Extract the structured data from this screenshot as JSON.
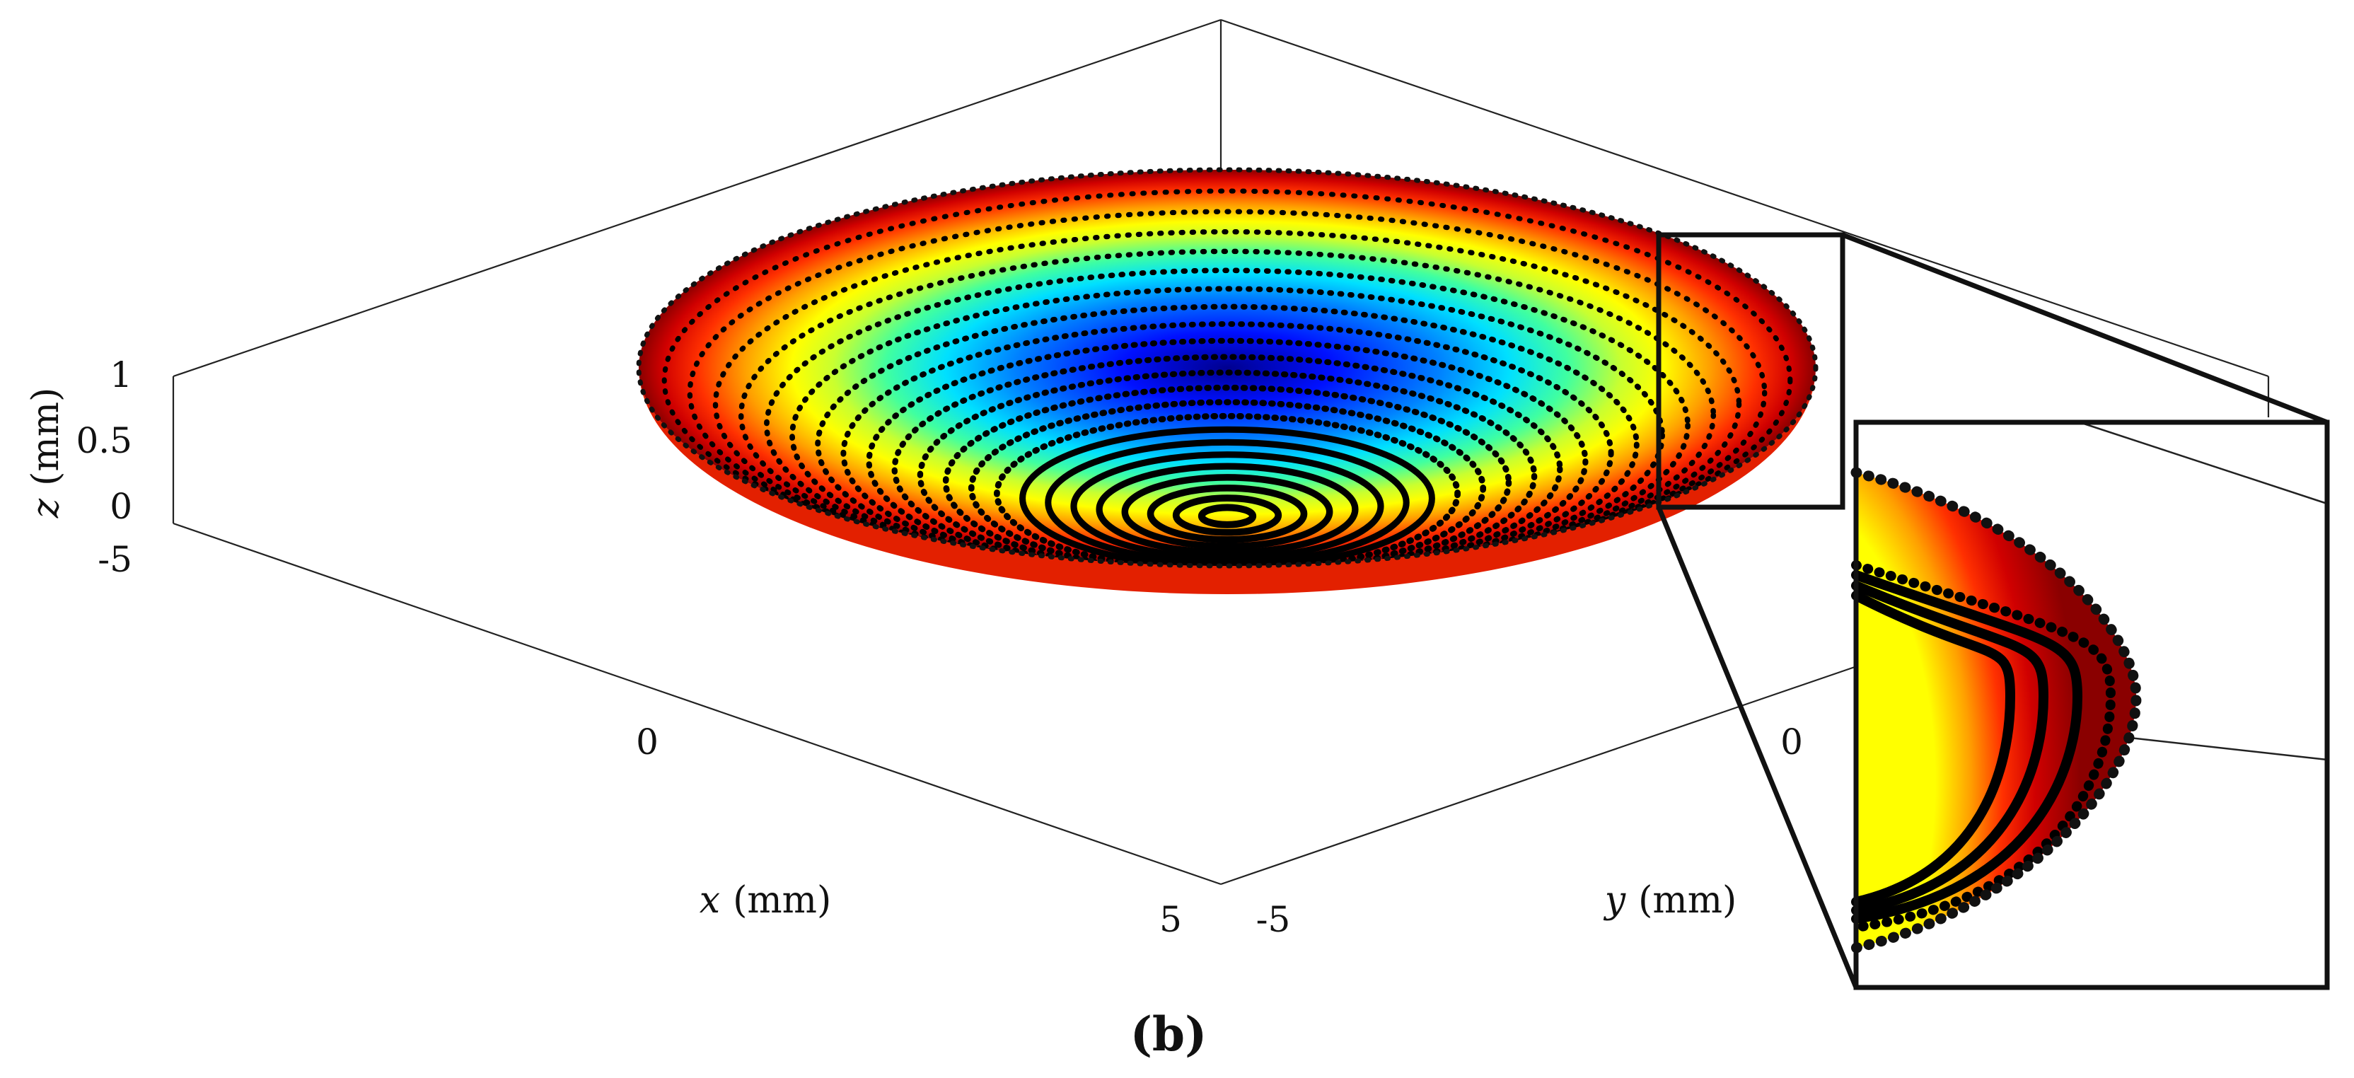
{
  "figure": {
    "panel_label": "(b)"
  },
  "chart_data": {
    "type": "surface-3d",
    "description_fields": {
      "surface": "concave spherical-cap dish, rainbow (jet) colormap by height, dark-red rim to blue centre",
      "overlay": "black scatter points on concentric circles",
      "inset": "zoomed view of the right rim"
    },
    "x_axis": {
      "var": "x",
      "unit": "(mm)",
      "ticks": [
        "0",
        "5"
      ],
      "range": [
        -5,
        5
      ]
    },
    "y_axis": {
      "var": "y",
      "unit": "(mm)",
      "ticks": [
        "-5",
        "0"
      ],
      "range": [
        -5,
        5
      ]
    },
    "z_axis": {
      "var": "z",
      "unit": "(mm)",
      "ticks": [
        "0",
        "0.5",
        "1"
      ],
      "range": [
        0,
        1
      ]
    },
    "corner_tick": "-5",
    "surface": {
      "radius_mm": 5,
      "height_at_rim_mm": 1,
      "height_at_centre_mm": 0,
      "colormap": "jet"
    },
    "scatter_rings": {
      "count": 22,
      "color": "#000000"
    },
    "zoom_inset": true
  }
}
